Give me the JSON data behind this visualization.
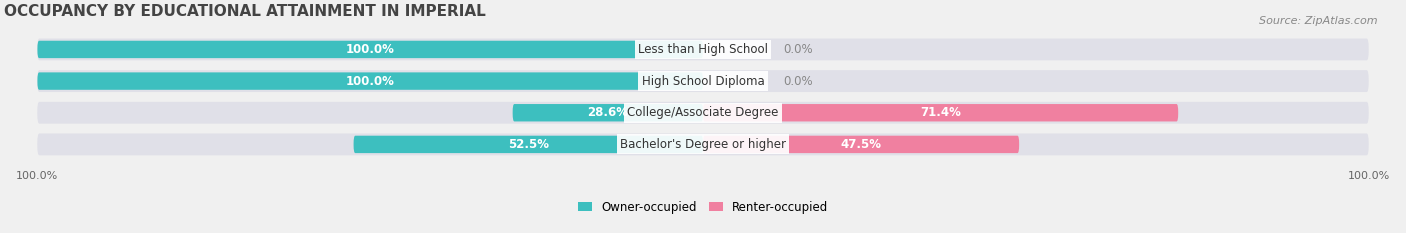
{
  "title": "OCCUPANCY BY EDUCATIONAL ATTAINMENT IN IMPERIAL",
  "source": "Source: ZipAtlas.com",
  "categories": [
    "Less than High School",
    "High School Diploma",
    "College/Associate Degree",
    "Bachelor's Degree or higher"
  ],
  "owner_values": [
    100.0,
    100.0,
    28.6,
    52.5
  ],
  "renter_values": [
    0.0,
    0.0,
    71.4,
    47.5
  ],
  "owner_color": "#3dbfbf",
  "renter_color": "#f080a0",
  "owner_label": "Owner-occupied",
  "renter_label": "Renter-occupied",
  "background_color": "#f0f0f0",
  "bar_bg_color": "#e0e0e8",
  "title_fontsize": 11,
  "source_fontsize": 8,
  "label_fontsize": 8.5,
  "axis_label_fontsize": 8,
  "bar_height": 0.55,
  "xlim": [
    -100,
    100
  ],
  "x_ticks_left": [
    -100
  ],
  "x_ticks_right": [
    100
  ],
  "x_tick_labels_left": [
    "100.0%"
  ],
  "x_tick_labels_right": [
    "100.0%"
  ]
}
